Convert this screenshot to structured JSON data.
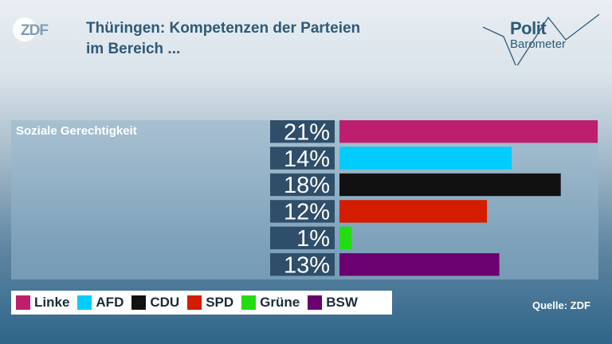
{
  "header": {
    "logo_text": "ZDF",
    "title_line1": "Thüringen: Kompetenzen der Parteien",
    "title_line2": "im Bereich ...",
    "brand_line1": "Polit",
    "brand_line2": "Barometer"
  },
  "source": "Quelle: ZDF",
  "colors": {
    "Linke": "#be1e6e",
    "AFD": "#00ccff",
    "CDU": "#111111",
    "SPD": "#d41c00",
    "Grüne": "#22dd11",
    "BSW": "#6b0070",
    "label_bg": "#2e4e6a"
  },
  "chart_data": {
    "type": "bar",
    "orientation": "horizontal",
    "category": "Soziale Gerechtigkeit",
    "categories": [
      "Linke",
      "AFD",
      "CDU",
      "SPD",
      "Grüne",
      "BSW"
    ],
    "values": [
      21,
      14,
      18,
      12,
      1,
      13
    ],
    "value_labels": [
      "21%",
      "14%",
      "18%",
      "12%",
      "1%",
      "13%"
    ],
    "unit": "%",
    "xlim": [
      0,
      21
    ],
    "legend": "bottom-left",
    "grid": false
  }
}
